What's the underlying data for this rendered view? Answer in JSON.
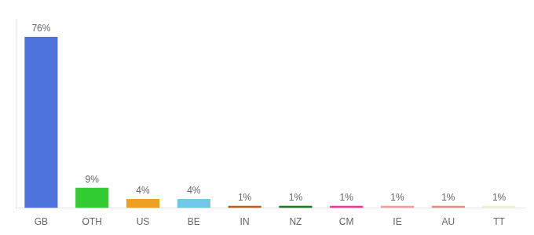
{
  "chart_data": {
    "type": "bar",
    "categories": [
      "GB",
      "OTH",
      "US",
      "BE",
      "IN",
      "NZ",
      "CM",
      "IE",
      "AU",
      "TT"
    ],
    "values": [
      76,
      9,
      4,
      4,
      1,
      1,
      1,
      1,
      1,
      1
    ],
    "value_labels": [
      "76%",
      "9%",
      "4%",
      "4%",
      "1%",
      "1%",
      "1%",
      "1%",
      "1%",
      "1%"
    ],
    "colors": [
      "#4d72d9",
      "#33cc33",
      "#f0a020",
      "#70c8e8",
      "#b86020",
      "#1a7a1a",
      "#ff3399",
      "#ff9999",
      "#e09080",
      "#f0f0d0"
    ],
    "ylim": [
      0,
      84
    ],
    "data_labels": true,
    "tick_labels": "x",
    "grid": false
  }
}
